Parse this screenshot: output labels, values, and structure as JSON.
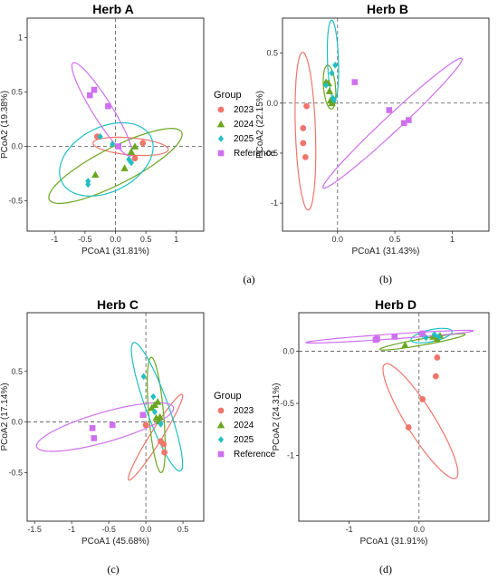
{
  "colors": {
    "2023": "#F0756B",
    "2024": "#6AA61F",
    "2025": "#1FBFC4",
    "Reference": "#CF70F0"
  },
  "legend_title": "Group",
  "groups": [
    "2023",
    "2024",
    "2025",
    "Reference"
  ],
  "chart_data": [
    {
      "type": "scatter",
      "title": "Herb A",
      "caption": "(a)",
      "xlabel": "PCoA1 (31.81%)",
      "ylabel": "PCoA2 (19.38%)",
      "xlim": [
        -1.45,
        1.45
      ],
      "ylim": [
        -0.78,
        1.18
      ],
      "xticks": [
        -1.0,
        -0.5,
        0.0,
        0.5,
        1.0
      ],
      "yticks": [
        -0.5,
        0.0,
        0.5,
        1.0
      ],
      "series": [
        {
          "name": "2023",
          "points": [
            [
              -0.3,
              0.09
            ],
            [
              0.32,
              -0.11
            ],
            [
              0.45,
              0.03
            ]
          ]
        },
        {
          "name": "2024",
          "points": [
            [
              -0.33,
              -0.26
            ],
            [
              0.15,
              -0.2
            ],
            [
              0.26,
              -0.05
            ],
            [
              0.32,
              0.0
            ]
          ]
        },
        {
          "name": "2025",
          "points": [
            [
              -0.45,
              -0.35
            ],
            [
              -0.45,
              -0.32
            ],
            [
              -0.25,
              0.09
            ],
            [
              -0.05,
              0.02
            ],
            [
              0.22,
              -0.12
            ],
            [
              0.26,
              -0.15
            ]
          ]
        },
        {
          "name": "Reference",
          "points": [
            [
              -0.42,
              0.47
            ],
            [
              -0.35,
              0.52
            ],
            [
              -0.12,
              0.37
            ],
            [
              0.05,
              0.0
            ]
          ]
        }
      ],
      "ellipses": [
        {
          "group": "2023",
          "cx": 0.25,
          "cy": 0.0,
          "rx": 0.62,
          "ry": 0.14,
          "angle": -5
        },
        {
          "group": "2024",
          "cx": 0.0,
          "cy": -0.18,
          "rx": 1.22,
          "ry": 0.3,
          "angle": 27
        },
        {
          "group": "2025",
          "cx": -0.15,
          "cy": -0.12,
          "rx": 0.82,
          "ry": 0.53,
          "angle": 27
        },
        {
          "group": "Reference",
          "cx": -0.22,
          "cy": 0.34,
          "rx": 0.9,
          "ry": 0.16,
          "angle": -58
        }
      ]
    },
    {
      "type": "scatter",
      "title": "Herb B",
      "caption": "(b)",
      "xlabel": "PCoA1 (31.43%)",
      "ylabel": "PCoA2 (22.15%)",
      "xlim": [
        -0.48,
        1.32
      ],
      "ylim": [
        -1.28,
        0.85
      ],
      "xticks": [
        0.0,
        0.5,
        1.0
      ],
      "yticks": [
        -1.0,
        -0.5,
        0.0,
        0.5
      ],
      "series": [
        {
          "name": "2023",
          "points": [
            [
              -0.27,
              -0.03
            ],
            [
              -0.3,
              -0.25
            ],
            [
              -0.3,
              -0.4
            ],
            [
              -0.28,
              -0.54
            ]
          ]
        },
        {
          "name": "2024",
          "points": [
            [
              -0.1,
              0.21
            ],
            [
              -0.08,
              0.2
            ],
            [
              -0.07,
              0.12
            ],
            [
              -0.06,
              0.03
            ],
            [
              -0.05,
              0.0
            ]
          ]
        },
        {
          "name": "2025",
          "points": [
            [
              -0.1,
              0.18
            ],
            [
              -0.05,
              0.3
            ],
            [
              -0.02,
              0.38
            ],
            [
              -0.04,
              0.05
            ],
            [
              -0.03,
              0.03
            ]
          ]
        },
        {
          "name": "Reference",
          "points": [
            [
              0.15,
              0.21
            ],
            [
              0.45,
              -0.07
            ],
            [
              0.58,
              -0.2
            ],
            [
              0.62,
              -0.17
            ]
          ]
        }
      ],
      "ellipses": [
        {
          "group": "2023",
          "cx": -0.28,
          "cy": -0.28,
          "rx": 0.79,
          "ry": 0.1,
          "angle": -88
        },
        {
          "group": "2024",
          "cx": -0.07,
          "cy": 0.16,
          "rx": 0.22,
          "ry": 0.06,
          "angle": -85
        },
        {
          "group": "2025",
          "cx": -0.04,
          "cy": 0.43,
          "rx": 0.4,
          "ry": 0.055,
          "angle": -88
        },
        {
          "group": "Reference",
          "cx": 0.48,
          "cy": -0.2,
          "rx": 0.95,
          "ry": 0.08,
          "angle": 43
        }
      ]
    },
    {
      "type": "scatter",
      "title": "Herb C",
      "caption": "(c)",
      "xlabel": "PCoA1 (45.68%)",
      "ylabel": "PCoA2 (17.14%)",
      "xlim": [
        -1.6,
        0.78
      ],
      "ylim": [
        -0.98,
        1.08
      ],
      "xticks": [
        -1.5,
        -1.0,
        -0.5,
        0.0,
        0.5
      ],
      "yticks": [
        -0.5,
        0.0,
        0.5
      ],
      "series": [
        {
          "name": "2023",
          "points": [
            [
              0.0,
              -0.03
            ],
            [
              0.2,
              -0.19
            ],
            [
              0.24,
              -0.22
            ],
            [
              0.25,
              -0.3
            ]
          ]
        },
        {
          "name": "2024",
          "points": [
            [
              0.08,
              0.14
            ],
            [
              0.12,
              0.17
            ],
            [
              0.16,
              0.2
            ],
            [
              0.19,
              0.05
            ],
            [
              0.14,
              0.04
            ],
            [
              0.18,
              0.01
            ]
          ]
        },
        {
          "name": "2025",
          "points": [
            [
              -0.03,
              0.45
            ],
            [
              0.1,
              0.25
            ],
            [
              0.12,
              0.1
            ],
            [
              0.2,
              -0.02
            ]
          ]
        },
        {
          "name": "Reference",
          "points": [
            [
              -0.72,
              -0.06
            ],
            [
              -0.7,
              -0.16
            ],
            [
              -0.45,
              -0.03
            ],
            [
              -0.04,
              0.07
            ]
          ]
        }
      ],
      "ellipses": [
        {
          "group": "2023",
          "cx": 0.13,
          "cy": -0.15,
          "rx": 0.68,
          "ry": 0.08,
          "angle": 58
        },
        {
          "group": "2024",
          "cx": 0.14,
          "cy": 0.07,
          "rx": 0.78,
          "ry": 0.1,
          "angle": -85
        },
        {
          "group": "2025",
          "cx": 0.15,
          "cy": 0.15,
          "rx": 0.92,
          "ry": 0.15,
          "angle": -70
        },
        {
          "group": "Reference",
          "cx": -0.55,
          "cy": -0.05,
          "rx": 0.96,
          "ry": 0.2,
          "angle": 16
        }
      ]
    },
    {
      "type": "scatter",
      "title": "Herb D",
      "caption": "(d)",
      "xlabel": "PCoA1 (31.91%)",
      "ylabel": "PCoA2 (24.31%)",
      "xlim": [
        -1.72,
        1.0
      ],
      "ylim": [
        -1.63,
        0.37
      ],
      "xticks": [
        -1,
        0
      ],
      "yticks": [
        -1.0,
        -0.5,
        0.0
      ],
      "series": [
        {
          "name": "2023",
          "points": [
            [
              -0.15,
              -0.73
            ],
            [
              0.05,
              -0.46
            ],
            [
              0.24,
              -0.24
            ],
            [
              0.26,
              -0.06
            ]
          ]
        },
        {
          "name": "2024",
          "points": [
            [
              -0.2,
              0.06
            ],
            [
              0.2,
              0.14
            ],
            [
              0.26,
              0.12
            ],
            [
              0.3,
              0.15
            ]
          ]
        },
        {
          "name": "2025",
          "points": [
            [
              0.05,
              0.16
            ],
            [
              0.1,
              0.13
            ],
            [
              0.22,
              0.16
            ],
            [
              0.28,
              0.14
            ]
          ]
        },
        {
          "name": "Reference",
          "points": [
            [
              -0.62,
              0.11
            ],
            [
              -0.6,
              0.12
            ],
            [
              -0.35,
              0.14
            ],
            [
              0.05,
              0.17
            ]
          ]
        }
      ],
      "ellipses": [
        {
          "group": "2023",
          "cx": 0.02,
          "cy": -0.67,
          "rx": 0.96,
          "ry": 0.2,
          "angle": -58
        },
        {
          "group": "2024",
          "cx": 0.05,
          "cy": 0.09,
          "rx": 0.62,
          "ry": 0.045,
          "angle": 10
        },
        {
          "group": "2025",
          "cx": 0.18,
          "cy": 0.15,
          "rx": 0.3,
          "ry": 0.085,
          "angle": 12
        },
        {
          "group": "Reference",
          "cx": -0.42,
          "cy": 0.14,
          "rx": 1.2,
          "ry": 0.035,
          "angle": 4
        }
      ]
    }
  ]
}
